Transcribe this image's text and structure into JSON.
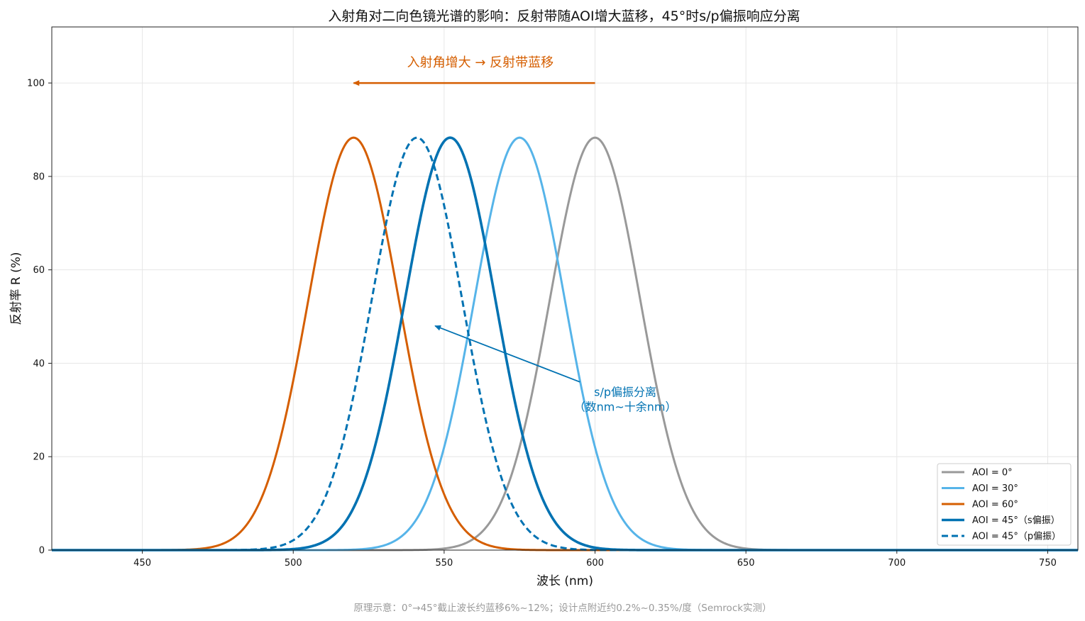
{
  "chart_data": {
    "type": "line",
    "title": "入射角对二向色镜光谱的影响：反射带随AOI增大蓝移，45°时s/p偏振响应分离",
    "xlabel": "波长 (nm)",
    "ylabel": "反射率 R (%)",
    "xlim": [
      420,
      760
    ],
    "ylim": [
      0,
      112
    ],
    "xticks": [
      450,
      500,
      550,
      600,
      650,
      700,
      750
    ],
    "yticks": [
      0,
      20,
      40,
      60,
      80,
      100
    ],
    "grid": true,
    "legend_position": "lower-right",
    "series": [
      {
        "name": "AOI = 0°",
        "center": 600,
        "peak": 88.3,
        "sigma": 15,
        "color": "#999999",
        "dash": false,
        "width": 3
      },
      {
        "name": "AOI = 30°",
        "center": 575,
        "peak": 88.3,
        "sigma": 15,
        "color": "#56b4e9",
        "dash": false,
        "width": 3
      },
      {
        "name": "AOI = 60°",
        "center": 520,
        "peak": 88.3,
        "sigma": 15,
        "color": "#d55e00",
        "dash": false,
        "width": 3
      },
      {
        "name": "AOI = 45°（s偏振）",
        "center": 552,
        "peak": 88.3,
        "sigma": 15,
        "color": "#0072b2",
        "dash": false,
        "width": 3.6
      },
      {
        "name": "AOI = 45°（p偏振）",
        "center": 541,
        "peak": 88.3,
        "sigma": 15,
        "color": "#0072b2",
        "dash": true,
        "width": 3
      }
    ],
    "annotations": [
      {
        "text": "入射角增大 → 反射带蓝移",
        "color": "#d55e00",
        "arrow_from": [
          600,
          100
        ],
        "arrow_to": [
          520,
          100
        ],
        "text_at": [
          562,
          103.5
        ]
      },
      {
        "lines": [
          "s/p偏振分离",
          "（数nm~十余nm）"
        ],
        "color": "#0072b2",
        "arrow_from": [
          595,
          36
        ],
        "arrow_to": [
          547,
          48
        ],
        "text_at": [
          610,
          33
        ]
      }
    ]
  },
  "footnote": "原理示意：0°→45°截止波长约蓝移6%~12%；设计点附近约0.2%~0.35%/度（Semrock实测）"
}
